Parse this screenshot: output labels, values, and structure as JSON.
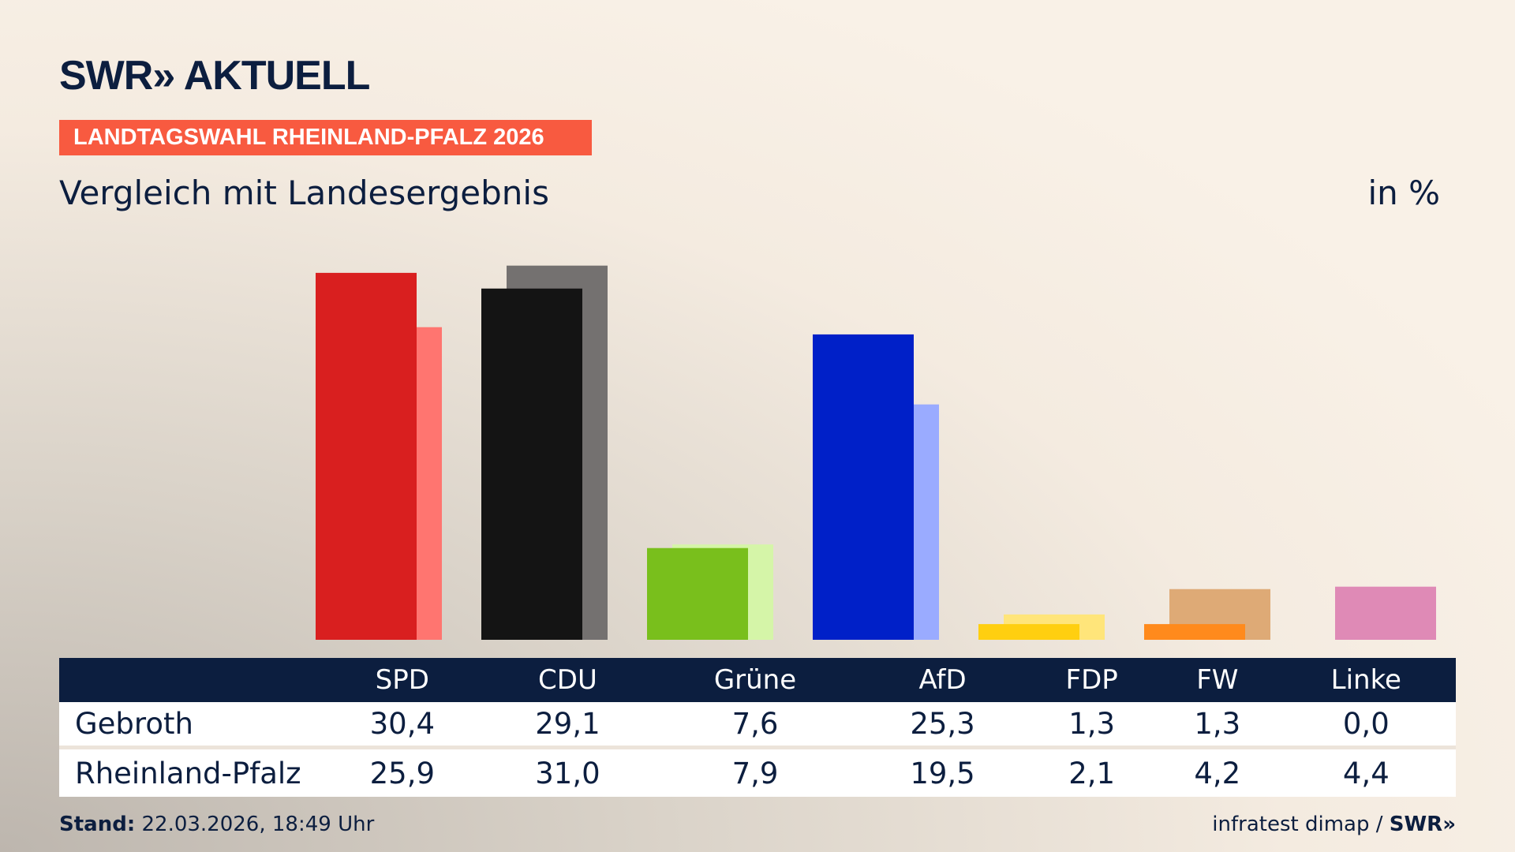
{
  "brand": {
    "logo": "SWR» AKTUELL",
    "source_logo": "SWR»"
  },
  "banner": "LANDTAGSWAHL RHEINLAND-PFALZ 2026",
  "subtitle": "Vergleich mit Landesergebnis",
  "unit": "in %",
  "footer": {
    "stand_label": "Stand:",
    "stand_value": "22.03.2026, 18:49 Uhr",
    "source": "infratest dimap /"
  },
  "chart_data": {
    "type": "bar",
    "categories": [
      "SPD",
      "CDU",
      "Grüne",
      "AfD",
      "FDP",
      "FW",
      "Linke"
    ],
    "series": [
      {
        "name": "Gebroth",
        "values": [
          30.4,
          29.1,
          7.6,
          25.3,
          1.3,
          1.3,
          0.0
        ],
        "colors": [
          "#d91f1f",
          "#141414",
          "#79bf1c",
          "#0020c8",
          "#ffcf10",
          "#ff8a1c",
          "#c0508a"
        ]
      },
      {
        "name": "Rheinland-Pfalz",
        "values": [
          25.9,
          31.0,
          7.9,
          19.5,
          2.1,
          4.2,
          4.4
        ],
        "colors": [
          "#ff7570",
          "#747170",
          "#d5f5a8",
          "#9aabff",
          "#ffe57a",
          "#deaa76",
          "#df8ab6"
        ]
      }
    ],
    "value_labels": [
      [
        "30,4",
        "29,1",
        "7,6",
        "25,3",
        "1,3",
        "1,3",
        "0,0"
      ],
      [
        "25,9",
        "31,0",
        "7,9",
        "19,5",
        "2,1",
        "4,2",
        "4,4"
      ]
    ],
    "ylim": [
      0,
      35
    ]
  }
}
